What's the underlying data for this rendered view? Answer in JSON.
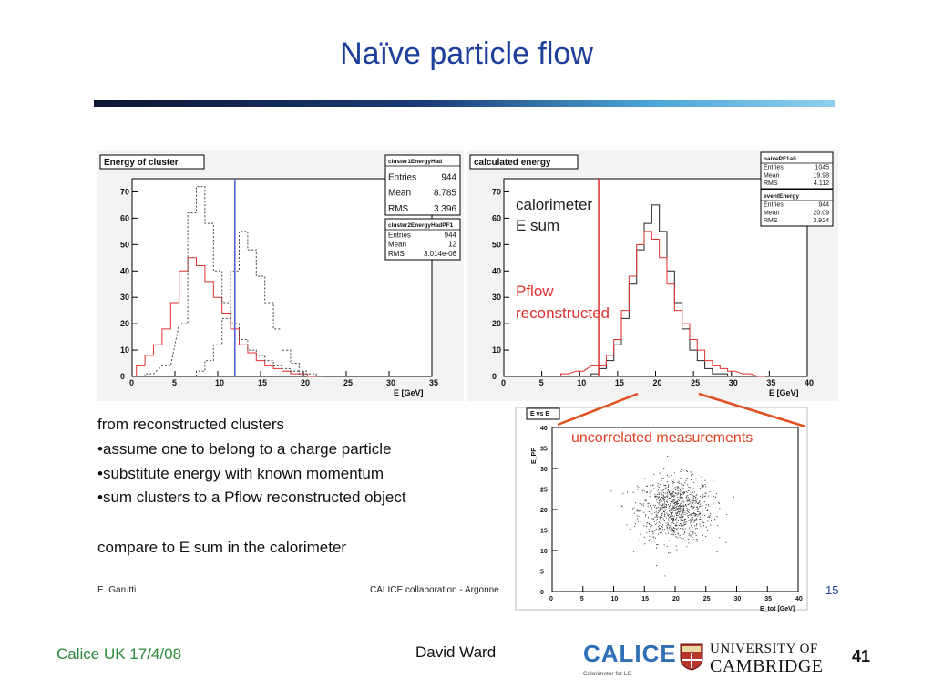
{
  "slide": {
    "title": "Naïve particle flow",
    "text_lines": [
      "from reconstructed clusters",
      "•assume one to belong to a charge particle",
      "•substitute energy with known momentum",
      "•sum clusters to a Pflow reconstructed object",
      "compare to E sum in the calorimeter"
    ],
    "inner_footer": {
      "author": "E. Garutti",
      "collab": "CALICE collaboration - Argonne",
      "page": "15"
    },
    "footer": {
      "left": "Calice UK 17/4/08",
      "center": "David Ward",
      "page": "41"
    },
    "logos": {
      "calice_word": "CALICE",
      "calice_sub": "Calorimeter for LC",
      "univ1": "UNIVERSITY OF",
      "univ2": "CAMBRIDGE"
    },
    "colors": {
      "title": "#1d3e9a",
      "footer_left": "#2a8a3a",
      "red": "#e03030",
      "annot": "#e04020"
    }
  },
  "chart_data": [
    {
      "type": "line",
      "title": "Energy of cluster",
      "xlabel": "E [GeV]",
      "xlim": [
        0,
        35
      ],
      "ylim": [
        0,
        75
      ],
      "xticks": [
        0,
        5,
        10,
        15,
        20,
        25,
        30,
        35
      ],
      "yticks": [
        0,
        10,
        20,
        30,
        40,
        50,
        60,
        70
      ],
      "stats": [
        {
          "name": "cluster1EnergyHad",
          "rows": [
            [
              "Entries",
              "944"
            ],
            [
              "Mean",
              "8.785"
            ],
            [
              "RMS",
              "3.396"
            ]
          ]
        },
        {
          "name": "cluster2EnergyHadPF1",
          "rows": [
            [
              "Entries",
              "944"
            ],
            [
              "Mean",
              "12"
            ],
            [
              "RMS",
              "3.014e-06"
            ]
          ]
        }
      ],
      "series": [
        {
          "color": "#e03030",
          "style": "solid",
          "x": [
            1,
            2,
            3,
            4,
            5,
            6,
            7,
            8,
            9,
            10,
            11,
            12,
            13,
            14,
            15,
            16,
            17,
            18,
            19,
            20,
            21
          ],
          "y": [
            4,
            8,
            12,
            18,
            28,
            40,
            45,
            42,
            36,
            30,
            24,
            18,
            12,
            9,
            6,
            4,
            3,
            2,
            1,
            1,
            0
          ]
        },
        {
          "color": "#444444",
          "style": "dashed",
          "x": [
            2,
            4,
            6,
            7,
            8,
            9,
            10,
            11,
            12,
            13,
            14,
            15,
            16,
            17,
            18,
            19,
            20,
            21,
            22
          ],
          "y": [
            1,
            4,
            20,
            62,
            72,
            58,
            40,
            28,
            20,
            14,
            10,
            8,
            6,
            4,
            3,
            2,
            1,
            1,
            0
          ]
        },
        {
          "color": "#444444",
          "style": "dashed",
          "x": [
            8,
            9,
            10,
            11,
            12,
            13,
            14,
            15,
            16,
            17,
            18,
            19,
            20
          ],
          "y": [
            2,
            6,
            12,
            22,
            40,
            55,
            48,
            38,
            28,
            18,
            10,
            5,
            2
          ]
        }
      ],
      "vline": {
        "x": 12,
        "color": "#4a5ad0"
      }
    },
    {
      "type": "line",
      "title": "calculated energy",
      "xlabel": "E [GeV]",
      "xlim": [
        0,
        40
      ],
      "ylim": [
        0,
        75
      ],
      "xticks": [
        0,
        5,
        10,
        15,
        20,
        25,
        30,
        35,
        40
      ],
      "yticks": [
        0,
        10,
        20,
        30,
        40,
        50,
        60,
        70
      ],
      "annotations": [
        "calorimeter",
        "E sum",
        "Pflow",
        "reconstructed"
      ],
      "stats": [
        {
          "name": "naivePF1all",
          "rows": [
            [
              "Entries",
              "1045"
            ],
            [
              "Mean",
              "19.98"
            ],
            [
              "RMS",
              "4.112"
            ]
          ]
        },
        {
          "name": "eventEnergy",
          "rows": [
            [
              "Entries",
              "944"
            ],
            [
              "Mean",
              "20.09"
            ],
            [
              "RMS",
              "2.924"
            ]
          ]
        }
      ],
      "series": [
        {
          "color": "#222222",
          "style": "solid",
          "x": [
            12,
            13,
            14,
            15,
            16,
            17,
            18,
            19,
            20,
            21,
            22,
            23,
            24,
            25,
            26,
            27,
            28,
            29,
            30
          ],
          "y": [
            1,
            3,
            6,
            12,
            22,
            35,
            48,
            58,
            65,
            55,
            40,
            28,
            18,
            10,
            6,
            3,
            1,
            1,
            0
          ]
        },
        {
          "color": "#e03030",
          "style": "solid",
          "x": [
            8,
            10,
            12,
            13,
            14,
            15,
            16,
            17,
            18,
            19,
            20,
            21,
            22,
            23,
            24,
            25,
            26,
            27,
            28,
            29,
            30,
            32,
            34
          ],
          "y": [
            1,
            2,
            4,
            4,
            8,
            14,
            25,
            38,
            50,
            55,
            52,
            45,
            35,
            25,
            20,
            14,
            10,
            6,
            4,
            3,
            2,
            1,
            0
          ]
        }
      ],
      "vline": {
        "x": 12.5,
        "color": "#e03030"
      }
    },
    {
      "type": "scatter",
      "title": "E_PF vs E_tot",
      "xlabel": "E_tot [GeV]",
      "ylabel": "E_PF",
      "xlim": [
        0,
        40
      ],
      "ylim": [
        0,
        40
      ],
      "xticks": [
        0,
        5,
        10,
        15,
        20,
        25,
        30,
        35,
        40
      ],
      "yticks": [
        0,
        5,
        10,
        15,
        20,
        25,
        30,
        35,
        40
      ],
      "annotation": "uncorrelated measurements",
      "cluster": {
        "center": [
          20,
          20
        ],
        "spread": [
          3,
          4
        ],
        "count": 900
      }
    }
  ]
}
